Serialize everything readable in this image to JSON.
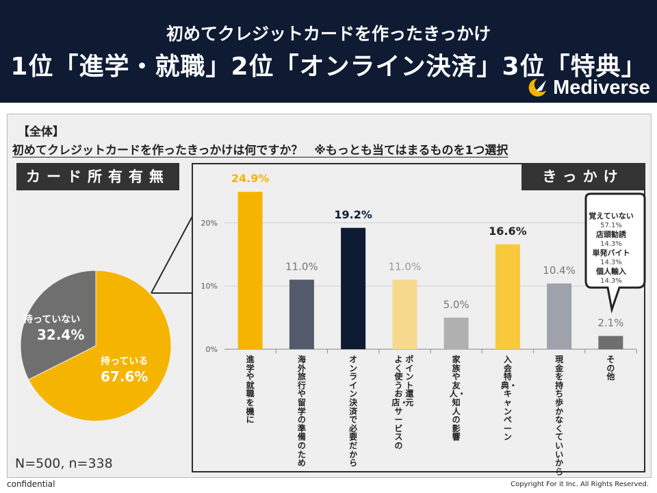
{
  "header": {
    "subtitle": "初めてクレジットカードを作ったきっかけ",
    "title": "1位「進学・就職」2位「オンライン決済」3位「特典」",
    "logo_text": "Mediverse"
  },
  "survey": {
    "tag": "【全体】",
    "question": "初めてクレジットカードを作ったきっかけは何ですか？　※もっとも当てはまるものを1つ選択",
    "left_box_label": "カード所有有無",
    "right_box_label": "きっかけ",
    "sample_note": "N=500, n=338"
  },
  "chart_data": [
    {
      "type": "pie",
      "title": "カード所有有無",
      "labels": [
        "持っている",
        "持っていない"
      ],
      "values": [
        67.6,
        32.4
      ],
      "value_labels": [
        "67.6%",
        "32.4%"
      ],
      "colors": [
        "#f5b400",
        "#6f6f6f"
      ]
    },
    {
      "type": "bar",
      "title": "きっかけ",
      "categories": [
        "進学や就職を機に",
        "海外旅行や留学の準備のため",
        "オンライン決済で必要だから",
        "よく使うお店・サービスのポイント還元",
        "家族や友人・知人の影響",
        "入会特典・キャンペーン",
        "現金を持ち歩かなくていいから",
        "その他"
      ],
      "category_lines": [
        [
          "進学や就職を機に"
        ],
        [
          "海外旅行や留学の準備のため"
        ],
        [
          "オンライン決済で必要だから"
        ],
        [
          "ポイント還元",
          "よく使うお店・サービスの"
        ],
        [
          "家族や友人・知人の影響"
        ],
        [
          "入会特典・キャンペーン"
        ],
        [
          "現金を持ち歩かなくていいから"
        ],
        [
          "その他"
        ]
      ],
      "values": [
        24.9,
        11.0,
        19.2,
        11.0,
        5.0,
        16.6,
        10.4,
        2.1
      ],
      "value_labels": [
        "24.9%",
        "11.0%",
        "19.2%",
        "11.0%",
        "5.0%",
        "16.6%",
        "10.4%",
        "2.1%"
      ],
      "label_emphasis": [
        true,
        false,
        true,
        false,
        false,
        true,
        false,
        false
      ],
      "colors": [
        "#f5b400",
        "#525a6b",
        "#0e1b33",
        "#f7d98d",
        "#b0b0b0",
        "#f9c93c",
        "#9ea3ab",
        "#6f6f6f"
      ],
      "label_colors": [
        "#f5b400",
        "#777777",
        "#0e1b33",
        "#999999",
        "#777777",
        "#222222",
        "#777777",
        "#777777"
      ],
      "yticks": [
        0,
        10,
        20
      ],
      "ytick_labels": [
        "0%",
        "10%",
        "20%"
      ],
      "ylim": [
        0,
        26
      ],
      "grid": true,
      "callout": {
        "items": [
          {
            "label": "覚えていない",
            "value": "57.1%"
          },
          {
            "label": "店頭勧誘",
            "value": "14.3%"
          },
          {
            "label": "単発バイト",
            "value": "14.3%"
          },
          {
            "label": "個人輸入",
            "value": "14.3%"
          }
        ]
      }
    }
  ],
  "footer": {
    "left": "confidential",
    "right": "Copyright For it Inc. All Rights Reserved."
  },
  "colors": {
    "header_bg": "#0e1b33",
    "accent": "#f5b400",
    "panel_bg": "#efefef"
  }
}
